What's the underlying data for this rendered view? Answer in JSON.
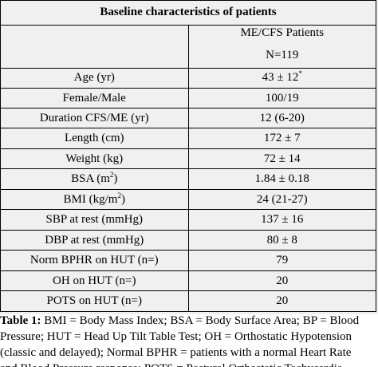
{
  "table": {
    "title": "Baseline characteristics of patients",
    "group_header": "ME/CFS Patients",
    "n_label": "N=119",
    "rows": [
      {
        "label": "Age (yr)",
        "value": "43 ± 12",
        "sup": "*"
      },
      {
        "label": "Female/Male",
        "value": "100/19"
      },
      {
        "label": "Duration CFS/ME (yr)",
        "value": "12 (6-20)"
      },
      {
        "label": "Length (cm)",
        "value": "172 ± 7"
      },
      {
        "label": "Weight (kg)",
        "value": "72 ± 14"
      },
      {
        "label": "BSA (m",
        "label_sup": "2",
        "label_end": ")",
        "value": "1.84 ± 0.18"
      },
      {
        "label": "BMI (kg/m",
        "label_sup": "2",
        "label_end": ")",
        "value": "24 (21-27)"
      },
      {
        "label": "SBP at rest (mmHg)",
        "value": "137 ± 16"
      },
      {
        "label": "DBP at rest (mmHg)",
        "value": "80 ± 8"
      },
      {
        "label": "Norm BPHR on HUT (n=)",
        "value": "79"
      },
      {
        "label": "OH on HUT (n=)",
        "value": "20"
      },
      {
        "label": "POTS on HUT (n=)",
        "value": "20"
      }
    ]
  },
  "caption": {
    "bold": "Table 1:",
    "line1": " BMI = Body Mass Index; BSA = Body Surface Area; BP = Blood",
    "line2": "Pressure; HUT = Head Up Tilt Table Test; OH = Orthostatic Hypotension",
    "line3": "(classic and delayed); Normal BPHR = patients with a normal Heart Rate",
    "line4": "and Blood Pressure response; POTS = Postural Orthostatic Tachycardia"
  }
}
